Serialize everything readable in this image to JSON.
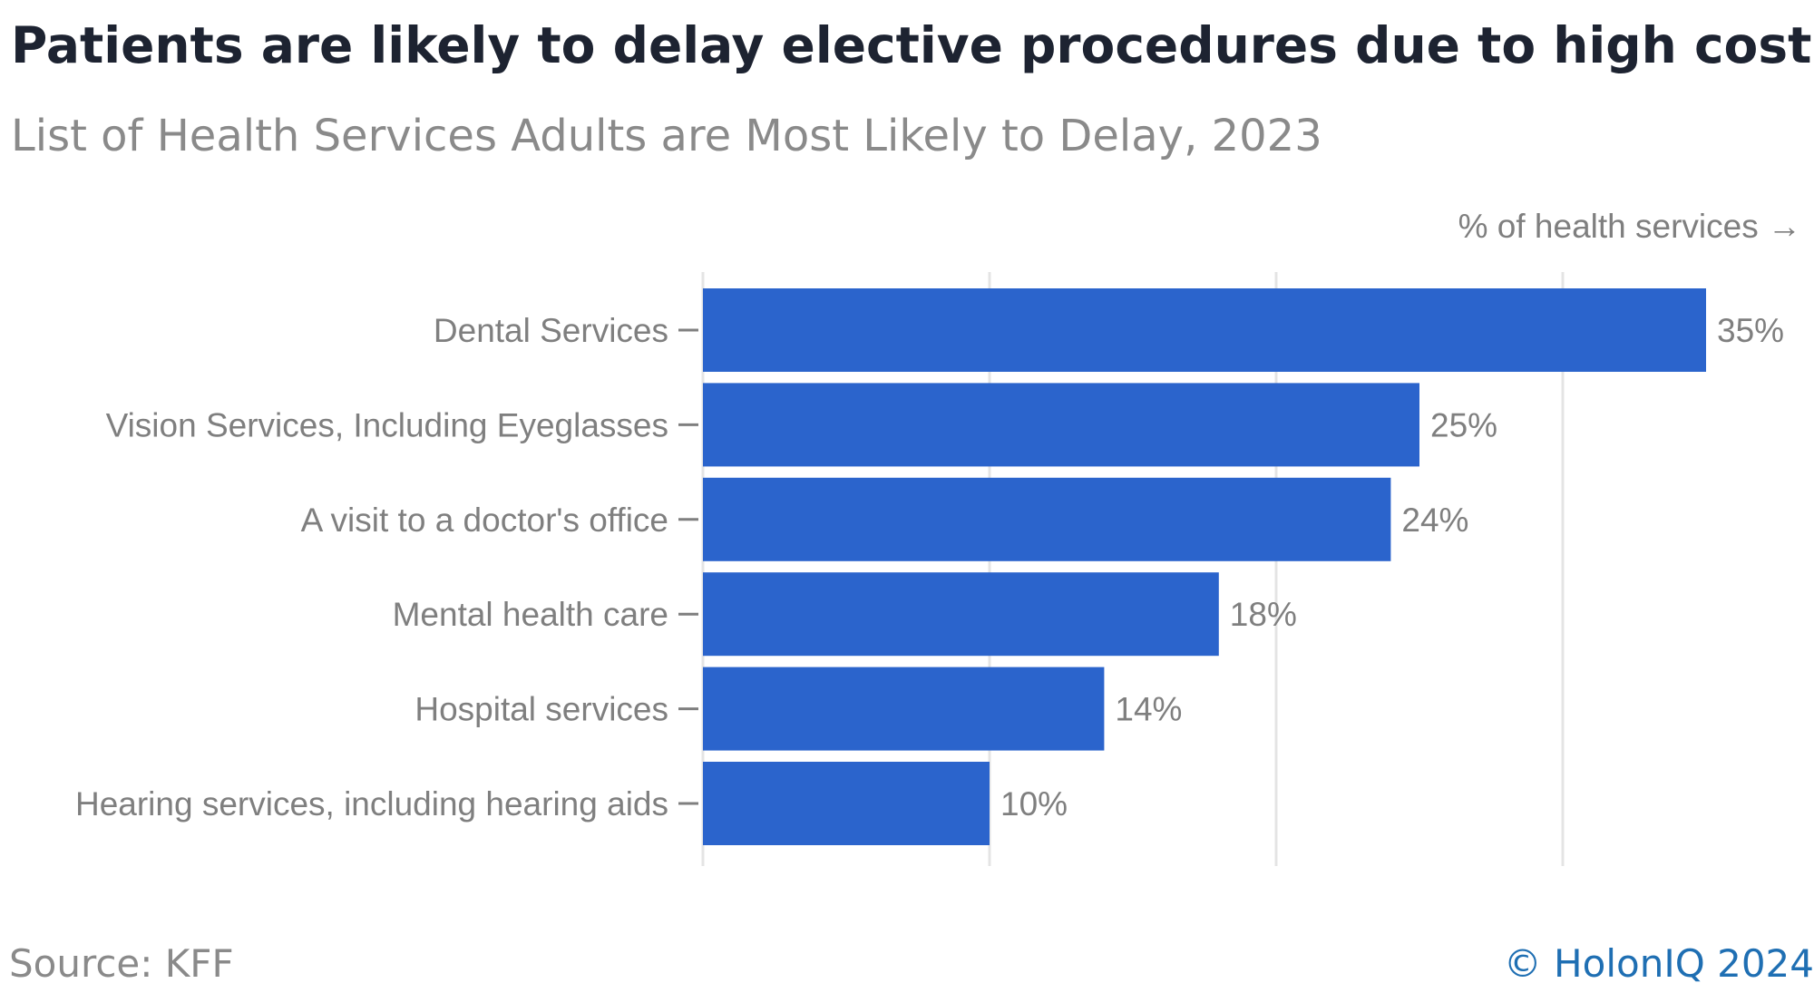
{
  "title": "Patients are likely to delay elective procedures due to high costs",
  "subtitle": "List of Health Services Adults are Most Likely to Delay, 2023",
  "footer": {
    "source": "Source: KFF",
    "credit": "© HolonIQ 2024"
  },
  "colors": {
    "bar": "#2b64cc",
    "label": "#7f7f7f",
    "grid": "#e4e4e4",
    "title": "#1d2331",
    "credit": "#1f6fb3"
  },
  "chart_data": {
    "type": "bar",
    "orientation": "horizontal",
    "categories": [
      "Dental Services",
      "Vision Services, Including Eyeglasses",
      "A visit to a doctor's office",
      "Mental health care",
      "Hospital services",
      "Hearing services, including hearing aids"
    ],
    "values": [
      35,
      25,
      24,
      18,
      14,
      10
    ],
    "value_labels": [
      "35%",
      "25%",
      "24%",
      "18%",
      "14%",
      "10%"
    ],
    "xlabel": "% of health services →",
    "ylabel": "",
    "xlim": [
      0,
      40
    ],
    "gridlines": [
      0,
      10,
      20,
      30
    ],
    "grid": true,
    "x_tick_labels_shown": false
  }
}
